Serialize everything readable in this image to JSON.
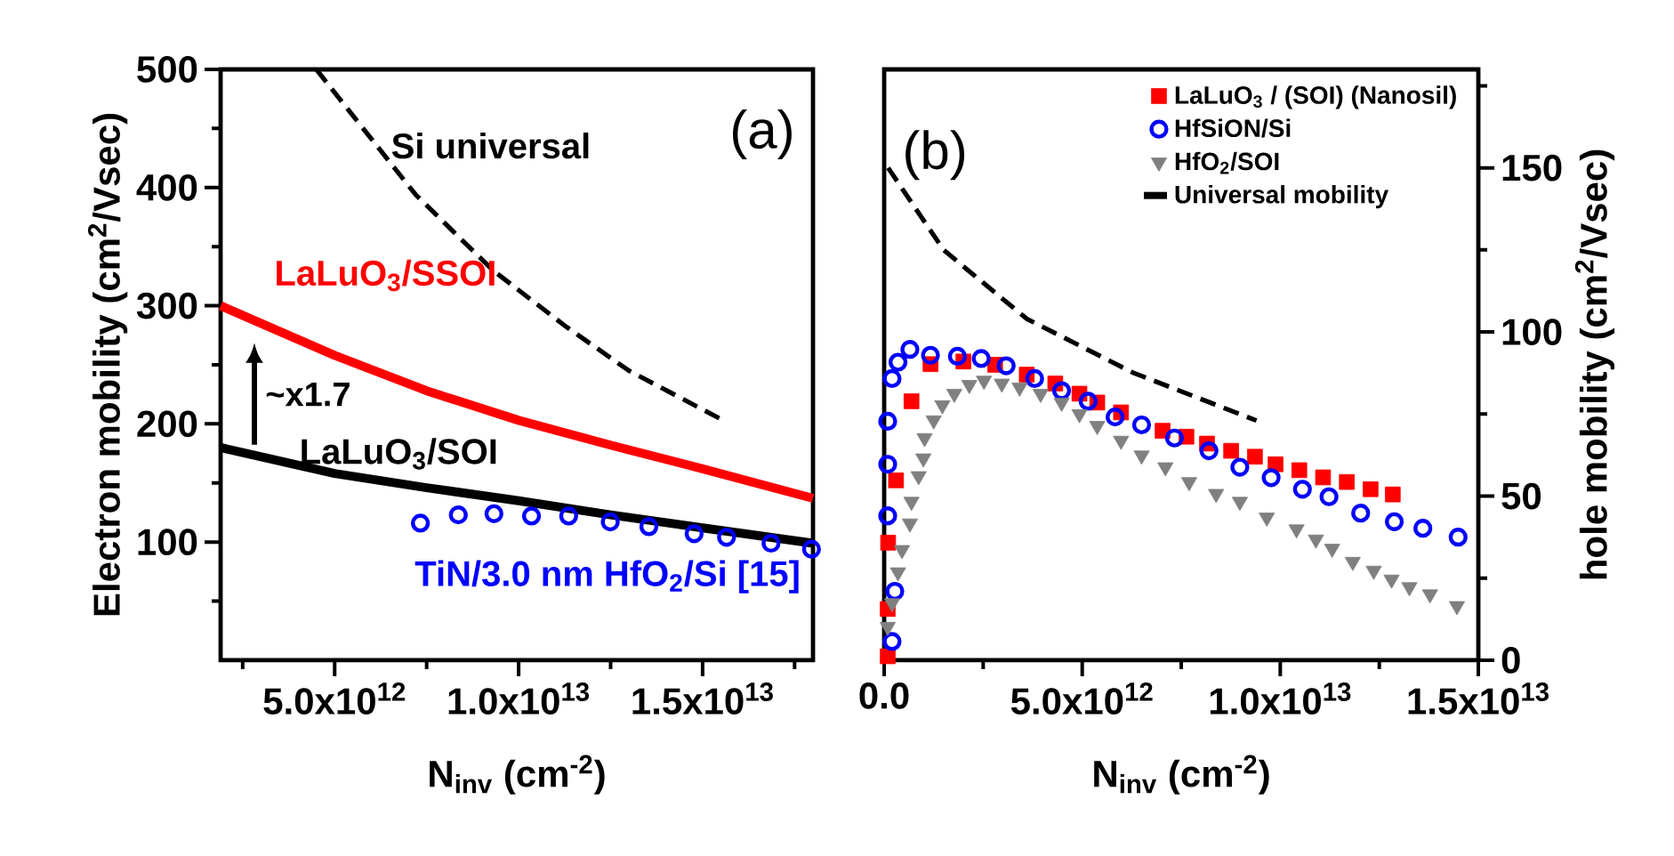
{
  "chart_data": [
    {
      "type": "line",
      "xlabel": "N$_{inv}$ (cm$^{-2}$)",
      "ylabel": "Electron mobility (cm$^{2}$/Vsec)",
      "xlim": [
        1900000000000.0,
        18000000000000.0
      ],
      "ylim": [
        0,
        500
      ],
      "xticks": [
        {
          "value": 2500000000000.0,
          "label": null
        },
        {
          "value": 5000000000000.0,
          "label": "5.0x10$^{12}$"
        },
        {
          "value": 7500000000000.0,
          "label": null
        },
        {
          "value": 10000000000000.0,
          "label": "1.0x10$^{13}$"
        },
        {
          "value": 12500000000000.0,
          "label": null
        },
        {
          "value": 15000000000000.0,
          "label": "1.5x10$^{13}$"
        },
        {
          "value": 17500000000000.0,
          "label": null
        }
      ],
      "yticks": [
        {
          "value": 50,
          "label": null
        },
        100,
        {
          "value": 150,
          "label": null
        },
        200,
        {
          "value": 250,
          "label": null
        },
        300,
        {
          "value": 350,
          "label": null
        },
        400,
        {
          "value": 450,
          "label": null
        },
        500
      ],
      "legend": false,
      "grid": false,
      "series": [
        {
          "name": "Si universal",
          "color": "#000000",
          "line_style": "dashed",
          "x": [
            4500000000000.0,
            7200000000000.0,
            9300000000000.0,
            11300000000000.0,
            13000000000000.0,
            15500000000000.0
          ],
          "values": [
            500,
            394,
            330,
            282,
            245,
            204
          ]
        },
        {
          "name": "LaLuO$_{3}$/SSOI",
          "color": "#ff0000",
          "line_style": "solid",
          "x": [
            1900000000000.0,
            5000000000000.0,
            7500000000000.0,
            10000000000000.0,
            12500000000000.0,
            15000000000000.0,
            18000000000000.0
          ],
          "values": [
            300,
            258,
            228,
            203,
            182,
            162,
            137
          ]
        },
        {
          "name": "LaLuO$_{3}$/SOI",
          "color": "#000000",
          "line_style": "solid",
          "x": [
            1900000000000.0,
            5000000000000.0,
            7500000000000.0,
            10000000000000.0,
            12500000000000.0,
            15000000000000.0,
            18000000000000.0
          ],
          "values": [
            180,
            158,
            146,
            135,
            123,
            112,
            99
          ]
        },
        {
          "name": "TiN/3.0 nm HfO$_{2}$/Si [15]",
          "type": "scatter",
          "marker": "circle",
          "color": "#0000ff",
          "x": [
            7330000000000.0,
            8360000000000.0,
            9330000000000.0,
            10350000000000.0,
            11360000000000.0,
            12490000000000.0,
            13540000000000.0,
            14770000000000.0,
            15650000000000.0,
            16860000000000.0,
            17960000000000.0
          ],
          "values": [
            116,
            123,
            124,
            122,
            122,
            117,
            113,
            107,
            104,
            99,
            94
          ]
        }
      ],
      "annotations": [
        "(a)",
        "~x1.7"
      ]
    },
    {
      "type": "scatter",
      "xlabel": "N$_{inv}$ (cm$^{-2}$)",
      "ylabel": "hole mobility (cm$^{2}$/Vsec)",
      "xlim": [
        0,
        15000000000000.0
      ],
      "ylim": [
        0,
        180
      ],
      "xticks": [
        {
          "value": 0,
          "label": "0.0"
        },
        {
          "value": 2500000000000.0,
          "label": null
        },
        {
          "value": 5000000000000.0,
          "label": "5.0x10$^{12}$"
        },
        {
          "value": 7500000000000.0,
          "label": null
        },
        {
          "value": 10000000000000.0,
          "label": "1.0x10$^{13}$"
        },
        {
          "value": 12500000000000.0,
          "label": null
        },
        {
          "value": 15000000000000.0,
          "label": "1.5x10$^{13}$"
        }
      ],
      "yticks": [
        0,
        {
          "value": 25,
          "label": null
        },
        50,
        {
          "value": 75,
          "label": null
        },
        100,
        {
          "value": 125,
          "label": null
        },
        150,
        {
          "value": 175,
          "label": null
        }
      ],
      "legend": "top right",
      "grid": false,
      "series": [
        {
          "name": "LaLuO$_{3}$ / (SOI) (Nanosil)",
          "marker": "square",
          "color": "#ff0000",
          "x": [
            90000000000.0,
            90000000000.0,
            100000000000.0,
            300000000000.0,
            690000000000.0,
            1170000000000.0,
            2000000000000.0,
            2800000000000.0,
            3600000000000.0,
            4320000000000.0,
            4930000000000.0,
            5380000000000.0,
            5980000000000.0,
            7030000000000.0,
            7630000000000.0,
            8150000000000.0,
            8760000000000.0,
            9360000000000.0,
            9880000000000.0,
            10480000000000.0,
            11080000000000.0,
            11680000000000.0,
            12280000000000.0,
            12840000000000.0
          ],
          "values": [
            1.2,
            15.6,
            35.8,
            54.8,
            78.9,
            90.2,
            91,
            90,
            87,
            84.3,
            81.2,
            78.5,
            75.5,
            69.9,
            68.1,
            66.0,
            63.8,
            62.0,
            59.7,
            57.9,
            55.7,
            54.3,
            52.1,
            50.5
          ]
        },
        {
          "name": "HfSiON/Si",
          "marker": "circle",
          "color": "#0000ff",
          "x": [
            200000000000.0,
            270000000000.0,
            90000000000.0,
            90000000000.0,
            90000000000.0,
            200000000000.0,
            350000000000.0,
            650000000000.0,
            1170000000000.0,
            1850000000000.0,
            2450000000000.0,
            3080000000000.0,
            3800000000000.0,
            4480000000000.0,
            5150000000000.0,
            5830000000000.0,
            6500000000000.0,
            7330000000000.0,
            8200000000000.0,
            8980000000000.0,
            9770000000000.0,
            10560000000000.0,
            11230000000000.0,
            12030000000000.0,
            12880000000000.0,
            13600000000000.0,
            14490000000000.0
          ],
          "values": [
            5.7,
            21,
            44,
            59.7,
            72.8,
            85.8,
            90.8,
            94.7,
            92.9,
            92.6,
            91.9,
            89.7,
            85.8,
            82.1,
            78.9,
            74.1,
            71.7,
            67.7,
            63.8,
            58.8,
            55.6,
            52.1,
            49.8,
            44.8,
            42.2,
            40.2,
            37.5
          ]
        },
        {
          "name": "HfO$_{2}$/SOI",
          "marker": "triangle",
          "color": "#808080",
          "x": [
            90000000000.0,
            200000000000.0,
            350000000000.0,
            450000000000.0,
            650000000000.0,
            690000000000.0,
            870000000000.0,
            990000000000.0,
            1020000000000.0,
            1250000000000.0,
            1470000000000.0,
            1770000000000.0,
            2150000000000.0,
            2520000000000.0,
            2970000000000.0,
            3420000000000.0,
            3950000000000.0,
            4480000000000.0,
            4930000000000.0,
            5380000000000.0,
            5980000000000.0,
            6500000000000.0,
            7100000000000.0,
            7700000000000.0,
            8380000000000.0,
            8980000000000.0,
            9660000000000.0,
            10410000000000.0,
            10900000000000.0,
            11310000000000.0,
            11830000000000.0,
            12360000000000.0,
            12810000000000.0,
            13260000000000.0,
            13780000000000.0,
            14460000000000.0
          ],
          "values": [
            10.2,
            17.4,
            26.8,
            33.6,
            41.7,
            48.3,
            56.1,
            61.5,
            67.7,
            73.1,
            77.7,
            81.2,
            83.9,
            85.2,
            84.3,
            83.1,
            81.2,
            78.5,
            75.0,
            71.4,
            66.9,
            62.4,
            58.8,
            54.3,
            50.7,
            48.3,
            43.5,
            39.9,
            36.8,
            34.0,
            30.0,
            27.3,
            24.6,
            22.3,
            20.1,
            16.5
          ]
        },
        {
          "name": "Universal mobility",
          "type": "line",
          "line_style": "dashed",
          "color": "#000000",
          "x": [
            100000000000.0,
            1500000000000.0,
            3600000000000.0,
            6300000000000.0,
            9400000000000.0
          ],
          "values": [
            150,
            125,
            104,
            87.5,
            73
          ]
        }
      ],
      "annotations": [
        "(b)"
      ]
    }
  ]
}
